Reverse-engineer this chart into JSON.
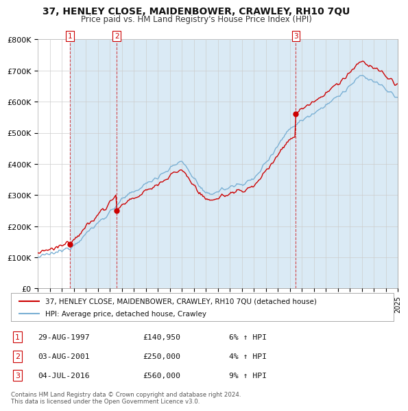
{
  "title": "37, HENLEY CLOSE, MAIDENBOWER, CRAWLEY, RH10 7QU",
  "subtitle": "Price paid vs. HM Land Registry's House Price Index (HPI)",
  "ylim": [
    0,
    800000
  ],
  "yticks": [
    0,
    100000,
    200000,
    300000,
    400000,
    500000,
    600000,
    700000,
    800000
  ],
  "ytick_labels": [
    "£0",
    "£100K",
    "£200K",
    "£300K",
    "£400K",
    "£500K",
    "£600K",
    "£700K",
    "£800K"
  ],
  "sale_color": "#cc0000",
  "hpi_color": "#7ab0d4",
  "ownership_fill_color": "#daeaf5",
  "transactions": [
    {
      "label": "1",
      "date": "29-AUG-1997",
      "year": 1997.66,
      "price": 140950,
      "pct": "6%",
      "dir": "↑"
    },
    {
      "label": "2",
      "date": "03-AUG-2001",
      "year": 2001.58,
      "price": 250000,
      "pct": "4%",
      "dir": "↑"
    },
    {
      "label": "3",
      "date": "04-JUL-2016",
      "year": 2016.5,
      "price": 560000,
      "pct": "9%",
      "dir": "↑"
    }
  ],
  "legend_line1": "37, HENLEY CLOSE, MAIDENBOWER, CRAWLEY, RH10 7QU (detached house)",
  "legend_line2": "HPI: Average price, detached house, Crawley",
  "footnote": "Contains HM Land Registry data © Crown copyright and database right 2024.\nThis data is licensed under the Open Government Licence v3.0.",
  "background_color": "#ffffff",
  "grid_color": "#cccccc",
  "xmin": 1995,
  "xmax": 2025
}
